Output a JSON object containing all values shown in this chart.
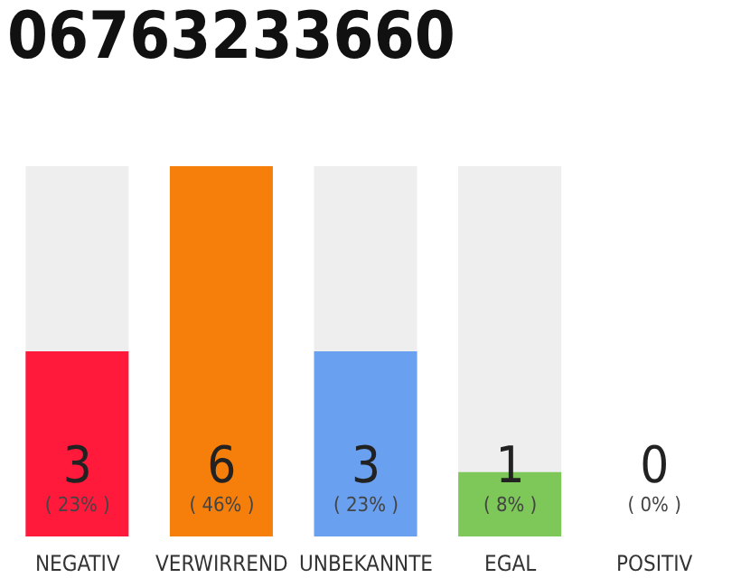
{
  "chart_data": {
    "type": "bar",
    "title": "06763233660",
    "categories": [
      "NEGATIV",
      "VERWIRREND",
      "UNBEKANNTE",
      "EGAL",
      "POSITIV"
    ],
    "values": [
      23,
      46,
      23,
      8,
      0
    ],
    "colors": [
      "#ff1a3c",
      "#f57f0a",
      "#6aa0f0",
      "#7ec85a",
      "#cccccc"
    ],
    "value_labels": [
      "( 23% )",
      "( 46% )",
      "( 23% )",
      "( 8% )",
      "( 0% )"
    ],
    "annotations": [
      "3",
      "6",
      "3",
      "1",
      "0"
    ],
    "tick_labels": "x"
  }
}
